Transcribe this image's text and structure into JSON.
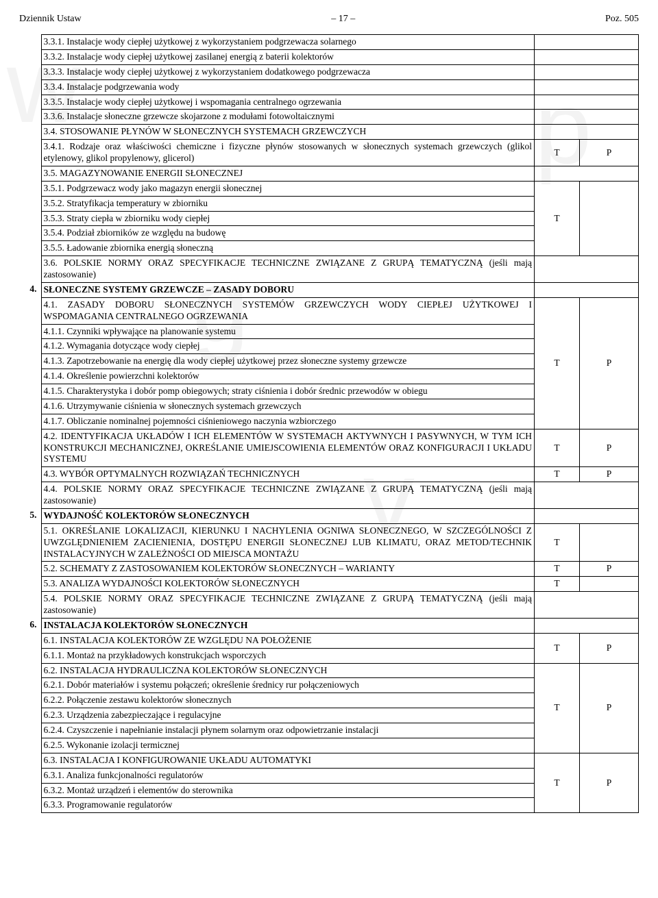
{
  "header": {
    "left": "Dziennik Ustaw",
    "center": "– 17 –",
    "right": "Poz. 505"
  },
  "watermark": {
    "w1": "w",
    "w2": "g",
    "w3": "v",
    "w4": "p"
  },
  "rows": [
    {
      "num": "",
      "text": "3.3.1. Instalacje wody ciepłej użytkowej z wykorzystaniem podgrzewacza solarnego",
      "t": "",
      "p": "",
      "span": "both"
    },
    {
      "num": "",
      "text": "3.3.2. Instalacje wody ciepłej użytkowej zasilanej energią z baterii kolektorów",
      "t": "",
      "p": "",
      "span": "both"
    },
    {
      "num": "",
      "text": "3.3.3. Instalacje wody ciepłej użytkowej z wykorzystaniem dodatkowego podgrzewacza",
      "t": "",
      "p": "",
      "span": "both"
    },
    {
      "num": "",
      "text": "3.3.4. Instalacje podgrzewania wody",
      "t": "",
      "p": "",
      "span": "both"
    },
    {
      "num": "",
      "text": "3.3.5. Instalacje wody ciepłej użytkowej i wspomagania centralnego ogrzewania",
      "t": "",
      "p": "",
      "span": "both"
    },
    {
      "num": "",
      "text": "3.3.6. Instalacje słoneczne grzewcze skojarzone z modułami fotowoltaicznymi",
      "t": "",
      "p": "",
      "span": "both"
    },
    {
      "num": "",
      "text": "3.4. STOSOWANIE PŁYNÓW W SŁONECZNYCH SYSTEMACH GRZEWCZYCH",
      "t": "",
      "p": "",
      "span": "both"
    },
    {
      "num": "",
      "text": "3.4.1. Rodzaje oraz właściwości chemiczne i fizyczne płynów stosowanych w słonecznych systemach grzewczych (glikol etylenowy, glikol propylenowy, glicerol)",
      "t": "T",
      "p": "P"
    },
    {
      "num": "",
      "text": "3.5. MAGAZYNOWANIE ENERGII SŁONECZNEJ",
      "t": "",
      "p": "",
      "span": "both"
    },
    {
      "num": "",
      "text": "3.5.1. Podgrzewacz wody jako magazyn energii słonecznej",
      "t": "",
      "p": "",
      "group": "g1"
    },
    {
      "num": "",
      "text": "3.5.2. Stratyfikacja temperatury w zbiorniku",
      "t": "T",
      "p": "",
      "group": "g1"
    },
    {
      "num": "",
      "text": "3.5.3. Straty ciepła w zbiorniku wody ciepłej",
      "t": "",
      "p": "",
      "group": "g1"
    },
    {
      "num": "",
      "text": "3.5.4. Podział zbiorników ze względu na budowę",
      "t": "",
      "p": "",
      "group": "g1"
    },
    {
      "num": "",
      "text": "3.5.5. Ładowanie  zbiornika energią słoneczną",
      "t": "",
      "p": "",
      "group": "g1"
    },
    {
      "num": "",
      "text": "3.6. POLSKIE NORMY ORAZ SPECYFIKACJE TECHNICZNE ZWIĄZANE Z GRUPĄ TEMATYCZNĄ (jeśli mają zastosowanie)",
      "t": "",
      "p": "",
      "span": "both"
    },
    {
      "num": "4.",
      "text": "SŁONECZNE SYSTEMY GRZEWCZE – ZASADY DOBORU",
      "bold": true,
      "span": "both"
    },
    {
      "num": "",
      "text": "4.1. ZASADY DOBORU SŁONECZNYCH SYSTEMÓW GRZEWCZYCH WODY CIEPŁEJ UŻYTKOWEJ I WSPOMAGANIA CENTRALNEGO OGRZEWANIA",
      "t": "",
      "p": "",
      "group": "g2"
    },
    {
      "num": "",
      "text": "4.1.1. Czynniki wpływające na planowanie systemu",
      "t": "",
      "p": "",
      "group": "g2"
    },
    {
      "num": "",
      "text": "4.1.2. Wymagania dotyczące wody ciepłej",
      "t": "",
      "p": "",
      "group": "g2"
    },
    {
      "num": "",
      "text": "4.1.3. Zapotrzebowanie na energię dla wody ciepłej użytkowej przez słoneczne systemy grzewcze",
      "t": "T",
      "p": "P",
      "group": "g2"
    },
    {
      "num": "",
      "text": "4.1.4. Określenie powierzchni kolektorów",
      "t": "",
      "p": "",
      "group": "g2"
    },
    {
      "num": "",
      "text": "4.1.5. Charakterystyka i dobór pomp obiegowych; straty ciśnienia i dobór średnic przewodów w obiegu",
      "t": "",
      "p": "",
      "group": "g2"
    },
    {
      "num": "",
      "text": "4.1.6. Utrzymywanie ciśnienia w słonecznych systemach grzewczych",
      "t": "",
      "p": "",
      "group": "g2"
    },
    {
      "num": "",
      "text": "4.1.7. Obliczanie nominalnej pojemności ciśnieniowego naczynia wzbiorczego",
      "t": "",
      "p": "",
      "group": "g2"
    },
    {
      "num": "",
      "text": "4.2. IDENTYFIKACJA UKŁADÓW I ICH ELEMENTÓW W SYSTEMACH AKTYWNYCH I PASYWNYCH, W TYM ICH KONSTRUKCJI MECHANICZNEJ, OKREŚLANIE UMIEJSCOWIENIA ELEMENTÓW ORAZ KONFIGURACJI I UKŁADU SYSTEMU",
      "t": "T",
      "p": "P"
    },
    {
      "num": "",
      "text": "4.3. WYBÓR OPTYMALNYCH ROZWIĄZAŃ TECHNICZNYCH",
      "t": "T",
      "p": "P"
    },
    {
      "num": "",
      "text": "4.4. POLSKIE NORMY ORAZ SPECYFIKACJE TECHNICZNE ZWIĄZANE Z GRUPĄ TEMATYCZNĄ (jeśli mają zastosowanie)",
      "t": "",
      "p": "",
      "span": "both"
    },
    {
      "num": "5.",
      "text": "WYDAJNOŚĆ KOLEKTORÓW SŁONECZNYCH",
      "bold": true,
      "span": "both"
    },
    {
      "num": "",
      "text": "5.1. OKREŚLANIE LOKALIZACJI, KIERUNKU I NACHYLENIA OGNIWA SŁONECZNEGO, W SZCZEGÓLNOŚCI Z UWZGLĘDNIENIEM ZACIENIENIA, DOSTĘPU ENERGII SŁONECZNEJ LUB KLIMATU, ORAZ METOD/TECHNIK INSTALACYJNYCH W ZALEŻNOŚCI OD MIEJSCA MONTAŻU",
      "t": "T",
      "p": ""
    },
    {
      "num": "",
      "text": "5.2. SCHEMATY Z ZASTOSOWANIEM KOLEKTORÓW SŁONECZNYCH – WARIANTY",
      "t": "T",
      "p": "P"
    },
    {
      "num": "",
      "text": "5.3. ANALIZA WYDAJNOŚCI KOLEKTORÓW SŁONECZNYCH",
      "t": "T",
      "p": ""
    },
    {
      "num": "",
      "text": "5.4. POLSKIE NORMY ORAZ SPECYFIKACJE TECHNICZNE ZWIĄZANE Z GRUPĄ TEMATYCZNĄ (jeśli mają zastosowanie)",
      "t": "",
      "p": "",
      "span": "both"
    },
    {
      "num": "6.",
      "text": "INSTALACJA KOLEKTORÓW SŁONECZNYCH",
      "bold": true,
      "span": "both"
    },
    {
      "num": "",
      "text": "6.1. INSTALACJA KOLEKTORÓW ZE WZGLĘDU NA POŁOŻENIE",
      "t": "T",
      "p": "P",
      "group": "g3"
    },
    {
      "num": "",
      "text": "6.1.1. Montaż na przykładowych konstrukcjach wsporczych",
      "t": "",
      "p": "",
      "group": "g3"
    },
    {
      "num": "",
      "text": "6.2. INSTALACJA HYDRAULICZNA KOLEKTORÓW SŁONECZNYCH",
      "t": "",
      "p": "",
      "group": "g4"
    },
    {
      "num": "",
      "text": "6.2.1. Dobór materiałów i systemu połączeń;  określenie średnicy rur połączeniowych",
      "t": "",
      "p": "",
      "group": "g4"
    },
    {
      "num": "",
      "text": "6.2.2. Połączenie zestawu kolektorów słonecznych",
      "t": "T",
      "p": "P",
      "group": "g4"
    },
    {
      "num": "",
      "text": "6.2.3. Urządzenia zabezpieczające i regulacyjne",
      "t": "",
      "p": "",
      "group": "g4"
    },
    {
      "num": "",
      "text": "6.2.4. Czyszczenie i napełnianie instalacji płynem solarnym oraz odpowietrzanie instalacji",
      "t": "",
      "p": "",
      "group": "g4"
    },
    {
      "num": "",
      "text": "6.2.5. Wykonanie izolacji termicznej",
      "t": "",
      "p": "",
      "group": "g4"
    },
    {
      "num": "",
      "text": "6.3. INSTALACJA I KONFIGUROWANIE UKŁADU AUTOMATYKI",
      "t": "",
      "p": "",
      "group": "g5"
    },
    {
      "num": "",
      "text": "6.3.1. Analiza funkcjonalności regulatorów",
      "t": "T",
      "p": "P",
      "group": "g5"
    },
    {
      "num": "",
      "text": "6.3.2. Montaż urządzeń i elementów do sterownika",
      "t": "",
      "p": "",
      "group": "g5"
    },
    {
      "num": "",
      "text": "6.3.3. Programowanie regulatorów",
      "t": "",
      "p": "",
      "group": "g5"
    }
  ],
  "groups": {
    "g1": {
      "t": "T",
      "p": "",
      "start": 9,
      "len": 5
    },
    "g2": {
      "t": "T",
      "p": "P",
      "start": 16,
      "len": 8
    },
    "g3": {
      "t": "T",
      "p": "P",
      "start": 33,
      "len": 2
    },
    "g4": {
      "t": "T",
      "p": "P",
      "start": 35,
      "len": 6
    },
    "g5": {
      "t": "T",
      "p": "P",
      "start": 41,
      "len": 4
    }
  }
}
